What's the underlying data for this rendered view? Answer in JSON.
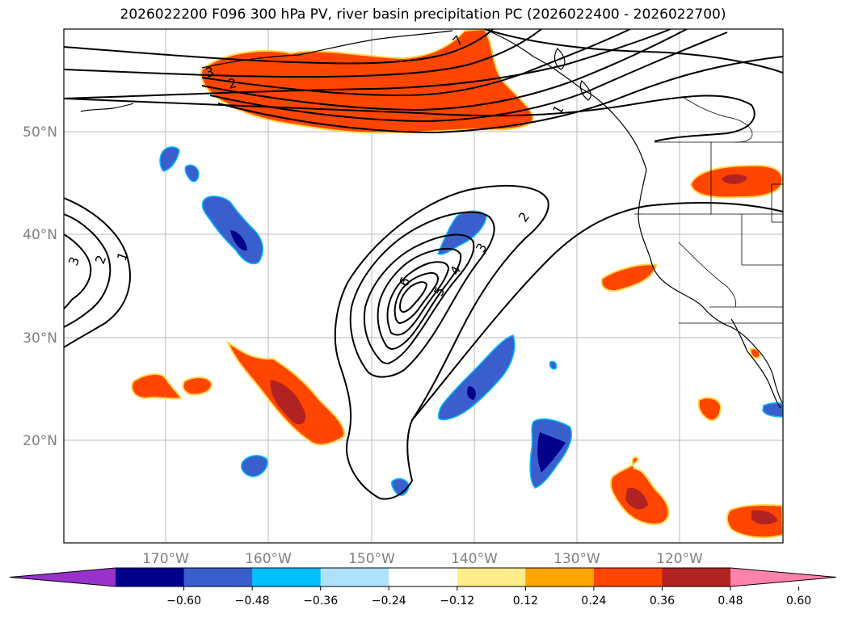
{
  "title": "2026022200 F096 300 hPa PV, river basin precipitation PC (2026022400 - 2026022700)",
  "map": {
    "lat_labels": [
      {
        "lat": 50,
        "label": "50°N"
      },
      {
        "lat": 40,
        "label": "40°N"
      },
      {
        "lat": 30,
        "label": "30°N"
      },
      {
        "lat": 20,
        "label": "20°N"
      }
    ],
    "lon_labels": [
      {
        "lon": -170,
        "label": "170°W"
      },
      {
        "lon": -160,
        "label": "160°W"
      },
      {
        "lon": -150,
        "label": "150°W"
      },
      {
        "lon": -140,
        "label": "140°W"
      },
      {
        "lon": -130,
        "label": "130°W"
      },
      {
        "lon": -120,
        "label": "120°W"
      }
    ],
    "pv_contour_labels": [
      "1",
      "2",
      "3",
      "1",
      "2",
      "3",
      "4",
      "5",
      "6",
      "2",
      "3",
      "7"
    ]
  },
  "colorbar": {
    "colors": [
      "#9932cc",
      "#00008b",
      "#3a5fcd",
      "#00bfff",
      "#b0e2ff",
      "#ffffff",
      "#ffec8b",
      "#ffa500",
      "#ff4500",
      "#b22222",
      "#ff82ab"
    ],
    "tick_labels": [
      "−0.60",
      "−0.48",
      "−0.36",
      "−0.24",
      "−0.12",
      "0.12",
      "0.24",
      "0.36",
      "0.48",
      "0.60"
    ]
  }
}
